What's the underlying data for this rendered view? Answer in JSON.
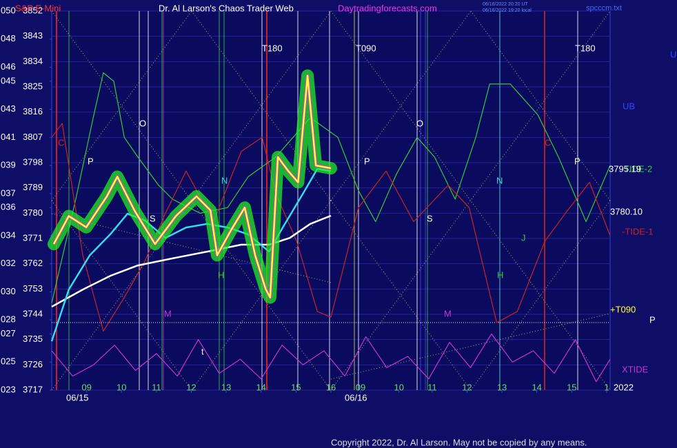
{
  "chart_data": {
    "type": "line",
    "instrument": "S&P E-Mini",
    "title": "Dr. Al Larson's Chaos Trader Web",
    "website": "Daytradingforecasts.com",
    "timestamps": [
      "06/16/2022 20:20 UT",
      "06/16/2022 19:20 local"
    ],
    "file": "spcccm.txt",
    "dates": [
      "06/15",
      "06/16"
    ],
    "year": "2022",
    "copyright": "Copyright 2022, Dr. Al Larson. May not be copied by any means.",
    "grid": true,
    "xlim": [
      8,
      24
    ],
    "xticks": [
      {
        "value": 9,
        "label": "09"
      },
      10,
      11,
      12,
      13,
      14,
      15,
      16,
      {
        "value": 16.85,
        "label": "09"
      },
      {
        "value": 17.95,
        "label": "10"
      },
      {
        "value": 18.9,
        "label": "11"
      },
      {
        "value": 19.9,
        "label": "12"
      },
      {
        "value": 20.9,
        "label": "13"
      },
      {
        "value": 21.9,
        "label": "14"
      },
      {
        "value": 22.9,
        "label": "15"
      },
      {
        "value": 23.9,
        "label": "1"
      }
    ],
    "ylim": [
      3717,
      3852
    ],
    "yticks": [
      3717,
      3726,
      3735,
      3744,
      3753,
      3762,
      3771,
      3780,
      3789,
      3798,
      3807,
      3816,
      3825,
      3834,
      3843,
      3852
    ],
    "y2lim": [
      23,
      50
    ],
    "y2ticks": [
      {
        "value": 23,
        "label": "023"
      },
      {
        "value": 25,
        "label": "025"
      },
      {
        "value": 27,
        "label": "027"
      },
      {
        "value": 28,
        "label": "028"
      },
      {
        "value": 30,
        "label": "030"
      },
      {
        "value": 32,
        "label": "032"
      },
      {
        "value": 34,
        "label": "034"
      },
      {
        "value": 36,
        "label": "036"
      },
      {
        "value": 37,
        "label": "037"
      },
      {
        "value": 39,
        "label": "039"
      },
      {
        "value": 41,
        "label": "041"
      },
      {
        "value": 43,
        "label": "043"
      },
      {
        "value": 45,
        "label": "045"
      },
      {
        "value": 46,
        "label": "046"
      },
      {
        "value": 48,
        "label": "048"
      },
      {
        "value": 50,
        "label": "050"
      }
    ],
    "series": [
      {
        "name": "TIDE-2",
        "color": "#33cc33",
        "x": [
          8,
          8.69,
          9.19,
          9.48,
          9.78,
          10.08,
          10.47,
          11.06,
          11.46,
          12.25,
          13.04,
          13.63,
          14.42,
          15.41,
          16.2,
          16.79,
          17.28,
          17.88,
          18.47,
          18.97,
          19.56,
          20.15,
          20.55,
          21.14,
          21.93,
          22.52,
          23.31,
          24
        ],
        "values": [
          3748,
          3785,
          3814,
          3830,
          3827,
          3807,
          3800,
          3790,
          3785,
          3780,
          3782,
          3793,
          3800,
          3814,
          3807,
          3788,
          3777,
          3794,
          3807,
          3800,
          3785,
          3807,
          3826,
          3826,
          3815,
          3800,
          3777,
          3797
        ]
      },
      {
        "name": "-TIDE-1",
        "color": "#cc2222",
        "x": [
          8,
          8.3,
          8.89,
          9.48,
          10.08,
          10.67,
          11.26,
          11.85,
          12.64,
          13.43,
          14.03,
          14.42,
          15.02,
          15.61,
          16,
          16.79,
          17.58,
          18.37,
          19.36,
          19.96,
          20.75,
          21.34,
          22.13,
          22.72,
          23.41,
          24
        ],
        "values": [
          3807,
          3812,
          3765,
          3738,
          3750,
          3763,
          3780,
          3795,
          3777,
          3802,
          3807,
          3787,
          3770,
          3745,
          3743,
          3782,
          3795,
          3777,
          3790,
          3782,
          3741,
          3745,
          3770,
          3780,
          3791,
          3772
        ]
      },
      {
        "name": "XTIDE",
        "color": "#cc33cc",
        "x": [
          8,
          8.6,
          9.2,
          9.8,
          10.4,
          11,
          11.6,
          12.2,
          12.8,
          13.4,
          14,
          14.6,
          15.2,
          15.8,
          16.4,
          17,
          17.6,
          18.2,
          18.8,
          19.4,
          20,
          20.6,
          21.2,
          21.8,
          22.4,
          23,
          23.6,
          24
        ],
        "values": [
          3731,
          3722,
          3726,
          3733,
          3724,
          3730,
          3722,
          3735,
          3723,
          3728,
          3721,
          3733,
          3726,
          3731,
          3722,
          3736,
          3725,
          3729,
          3721,
          3734,
          3725,
          3737,
          3727,
          3731,
          3723,
          3735,
          3720,
          3728
        ]
      },
      {
        "color": "#ffffff",
        "x": [
          8,
          8.89,
          9.68,
          10.47,
          11.46,
          12.45,
          13.43,
          14.23,
          14.82,
          15.41,
          16
        ],
        "values": [
          3746.7,
          3752.8,
          3757.7,
          3761.4,
          3763.9,
          3766.3,
          3768.8,
          3768.8,
          3771.2,
          3776.2,
          3779.1
        ]
      },
      {
        "color": "#33ddee",
        "x": [
          8,
          8.49,
          9.09,
          9.68,
          10.17,
          10.67,
          11.26,
          11.85,
          12.45,
          13.04,
          13.63,
          14.23,
          14.62,
          15.21,
          15.61,
          16
        ],
        "values": [
          3734.4,
          3752.8,
          3765,
          3772.5,
          3779.8,
          3777.4,
          3771.2,
          3774.9,
          3776.2,
          3774.9,
          3772.5,
          3766.3,
          3774.9,
          3787.2,
          3795.8,
          3795
        ]
      },
      {
        "color": "#ffff33",
        "x": [
          8.06,
          8.49,
          8.99,
          9.58,
          9.88,
          10.37,
          10.96,
          11.56,
          12.15,
          12.55,
          12.74,
          13.14,
          13.53,
          13.83,
          14.13,
          14.26,
          14.48,
          14.78,
          15.06,
          15.33,
          15.57,
          16
        ],
        "values": [
          3769,
          3779,
          3775,
          3786,
          3793,
          3781,
          3769,
          3779,
          3786,
          3781,
          3765,
          3774,
          3782,
          3765,
          3753,
          3750,
          3800,
          3795,
          3791,
          3829,
          3797,
          3796
        ]
      }
    ],
    "annotations": [
      "T180",
      "T090",
      "T180",
      "UB",
      "3795.19",
      "3780.10",
      "+T090",
      "P",
      "U",
      "C",
      "P",
      "O",
      "N",
      "S",
      "M",
      "H",
      "t",
      "O",
      "P",
      "N",
      "S",
      "M",
      "H",
      "J",
      "C",
      "P"
    ]
  }
}
